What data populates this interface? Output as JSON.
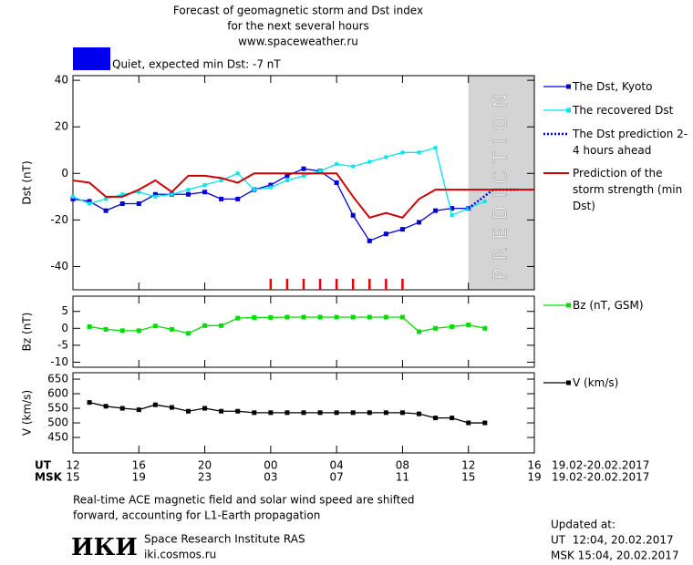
{
  "header": {
    "title_lines": [
      "Forecast of geomagnetic storm and Dst index",
      "for the next several hours",
      "www.spaceweather.ru"
    ],
    "status": {
      "color": "#0000ee",
      "text": "Quiet, expected min Dst: -7 nT"
    }
  },
  "chart_data": [
    {
      "type": "line",
      "ylabel": "Dst (nT)",
      "xlim": [
        0,
        28
      ],
      "ylim": [
        -50,
        42
      ],
      "yticks": [
        -40,
        -20,
        0,
        20,
        40
      ],
      "shade": {
        "range": [
          24,
          28
        ],
        "color": "#d4d4d4",
        "label": "PREDICTION"
      },
      "markers": {
        "x": [
          12,
          13,
          14,
          15,
          16,
          17,
          18,
          19,
          20
        ],
        "color": "#e00000"
      },
      "series": [
        {
          "name": "The Dst, Kyoto",
          "color": "#0000dd",
          "marker": "square",
          "dash": "solid",
          "x": [
            0,
            1,
            2,
            3,
            4,
            5,
            6,
            7,
            8,
            9,
            10,
            11,
            12,
            13,
            14,
            15,
            16,
            17,
            18,
            19,
            20,
            21,
            22,
            23,
            24
          ],
          "values": [
            -11,
            -12,
            -16,
            -13,
            -13,
            -9,
            -9,
            -9,
            -8,
            -11,
            -11,
            -7,
            -5,
            -1,
            2,
            1,
            -4,
            -18,
            -29,
            -26,
            -24,
            -21,
            -16,
            -15,
            -15
          ]
        },
        {
          "name": "The recovered Dst",
          "color": "#00e5ee",
          "marker": "small",
          "dash": "solid",
          "x": [
            0,
            1,
            2,
            3,
            4,
            5,
            6,
            7,
            8,
            9,
            10,
            11,
            12,
            13,
            14,
            15,
            16,
            17,
            18,
            19,
            20,
            21,
            22,
            23,
            24,
            25
          ],
          "values": [
            -10,
            -13,
            -11,
            -9,
            -8,
            -10,
            -9,
            -7,
            -5,
            -3,
            0,
            -7,
            -6,
            -3,
            -1,
            1,
            4,
            3,
            5,
            7,
            9,
            9,
            11,
            -18,
            -15,
            -12
          ]
        },
        {
          "name": "The Dst prediction 2-4 hours ahead",
          "color": "#0000dd",
          "marker": "none",
          "dash": "dotted",
          "x": [
            24,
            25.5,
            27
          ],
          "values": [
            -15,
            -7,
            -7
          ]
        },
        {
          "name": "Prediction of the storm strength (min Dst)",
          "color": "#d00000",
          "marker": "none",
          "dash": "solid",
          "x": [
            0,
            1,
            2,
            3,
            4,
            5,
            6,
            7,
            8,
            9,
            10,
            11,
            12,
            13,
            14,
            15,
            16,
            17,
            18,
            19,
            20,
            21,
            22,
            23,
            24,
            25,
            26,
            27,
            28
          ],
          "values": [
            -3,
            -4,
            -10,
            -10,
            -7,
            -3,
            -8,
            -1,
            -1,
            -2,
            -4,
            0,
            0,
            0,
            0,
            0,
            0,
            -10,
            -19,
            -17,
            -19,
            -11,
            -7,
            -7,
            -7,
            -7,
            -7,
            -7,
            -7
          ]
        }
      ]
    },
    {
      "type": "line",
      "ylabel": "Bz (nT)",
      "xlim": [
        0,
        28
      ],
      "ylim": [
        -11.5,
        9.5
      ],
      "yticks": [
        -10,
        -5,
        0,
        5
      ],
      "series": [
        {
          "name": "Bz (nT, GSM)",
          "color": "#00dd00",
          "marker": "square",
          "dash": "solid",
          "x": [
            1,
            2,
            3,
            4,
            5,
            6,
            7,
            8,
            9,
            10,
            11,
            12,
            13,
            14,
            15,
            16,
            17,
            18,
            19,
            20,
            21,
            22,
            23,
            24,
            25
          ],
          "values": [
            0.5,
            -0.3,
            -0.7,
            -0.7,
            0.7,
            -0.3,
            -1.5,
            0.8,
            0.8,
            3,
            3.2,
            3.2,
            3.3,
            3.3,
            3.3,
            3.3,
            3.3,
            3.3,
            3.3,
            3.3,
            -1,
            0,
            0.5,
            1,
            0
          ]
        }
      ]
    },
    {
      "type": "line",
      "ylabel": "V (km/s)",
      "xlim": [
        0,
        28
      ],
      "ylim": [
        397,
        672
      ],
      "yticks": [
        450,
        500,
        550,
        600,
        650
      ],
      "series": [
        {
          "name": "V (km/s)",
          "color": "#000000",
          "marker": "square",
          "dash": "solid",
          "x": [
            1,
            2,
            3,
            4,
            5,
            6,
            7,
            8,
            9,
            10,
            11,
            12,
            13,
            14,
            15,
            16,
            17,
            18,
            19,
            20,
            21,
            22,
            23,
            24,
            25
          ],
          "values": [
            570,
            557,
            550,
            545,
            562,
            553,
            540,
            550,
            540,
            540,
            535,
            535,
            535,
            535,
            535,
            535,
            535,
            535,
            535,
            535,
            531,
            517,
            517,
            500,
            500
          ]
        }
      ],
      "xticks_rows": [
        {
          "name": "UT",
          "dates": "19.02-20.02.2017",
          "ticks": [
            {
              "value": 0,
              "label": "12"
            },
            {
              "value": 4,
              "label": "16"
            },
            {
              "value": 8,
              "label": "20"
            },
            {
              "value": 12,
              "label": "00"
            },
            {
              "value": 16,
              "label": "04"
            },
            {
              "value": 20,
              "label": "08"
            },
            {
              "value": 24,
              "label": "12"
            },
            {
              "value": 28,
              "label": "16"
            }
          ]
        },
        {
          "name": "MSK",
          "dates": "19.02-20.02.2017",
          "ticks": [
            {
              "value": 0,
              "label": "15"
            },
            {
              "value": 4,
              "label": "19"
            },
            {
              "value": 8,
              "label": "23"
            },
            {
              "value": 12,
              "label": "03"
            },
            {
              "value": 16,
              "label": "07"
            },
            {
              "value": 20,
              "label": "11"
            },
            {
              "value": 24,
              "label": "15"
            },
            {
              "value": 28,
              "label": "19"
            }
          ]
        }
      ]
    }
  ],
  "footer": {
    "note_lines": [
      "Real-time ACE magnetic field and solar wind speed are shifted",
      "forward, accounting for L1-Earth propagation"
    ],
    "logo": "ИКИ",
    "institute": "Space Research Institute RAS",
    "site": "iki.cosmos.ru",
    "updated": [
      "Updated at:",
      "UT  12:04, 20.02.2017",
      "MSK 15:04, 20.02.2017"
    ]
  }
}
